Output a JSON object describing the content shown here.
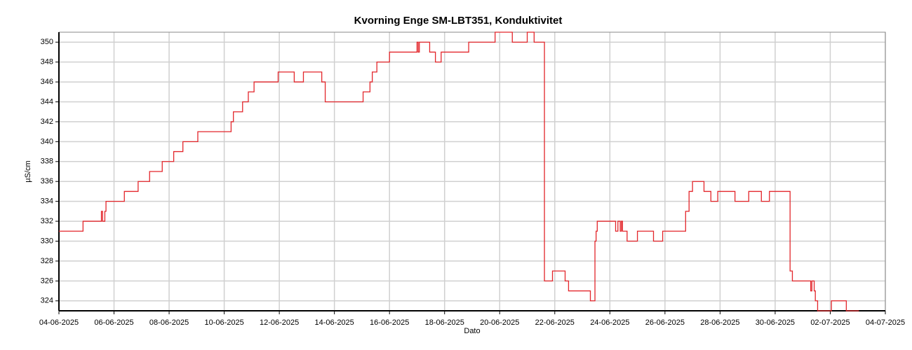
{
  "chart_data": {
    "type": "line",
    "title": "Kvorning Enge SM-LBT351, Konduktivitet",
    "x_label": "Dato",
    "y_label": "µS/cm",
    "drawstyle": "steps-post",
    "grid": true,
    "xlim": [
      "2025-06-04T00:00",
      "2025-07-04T00:00"
    ],
    "xticks": [
      {
        "value": "2025-06-04T00:00",
        "label": "04-06-2025"
      },
      {
        "value": "2025-06-06T00:00",
        "label": "06-06-2025"
      },
      {
        "value": "2025-06-08T00:00",
        "label": "08-06-2025"
      },
      {
        "value": "2025-06-10T00:00",
        "label": "10-06-2025"
      },
      {
        "value": "2025-06-12T00:00",
        "label": "12-06-2025"
      },
      {
        "value": "2025-06-14T00:00",
        "label": "14-06-2025"
      },
      {
        "value": "2025-06-16T00:00",
        "label": "16-06-2025"
      },
      {
        "value": "2025-06-18T00:00",
        "label": "18-06-2025"
      },
      {
        "value": "2025-06-20T00:00",
        "label": "20-06-2025"
      },
      {
        "value": "2025-06-22T00:00",
        "label": "22-06-2025"
      },
      {
        "value": "2025-06-24T00:00",
        "label": "24-06-2025"
      },
      {
        "value": "2025-06-26T00:00",
        "label": "26-06-2025"
      },
      {
        "value": "2025-06-28T00:00",
        "label": "28-06-2025"
      },
      {
        "value": "2025-06-30T00:00",
        "label": "30-06-2025"
      },
      {
        "value": "2025-07-02T00:00",
        "label": "02-07-2025"
      },
      {
        "value": "2025-07-04T00:00",
        "label": "04-07-2025"
      }
    ],
    "ylim": [
      323,
      351
    ],
    "yticks": [
      324,
      326,
      328,
      330,
      332,
      334,
      336,
      338,
      340,
      342,
      344,
      346,
      348,
      350
    ],
    "x": [
      "2025-06-04T00:00",
      "2025-06-04T21:00",
      "2025-06-05T13:00",
      "2025-06-05T14:00",
      "2025-06-05T16:00",
      "2025-06-05T17:00",
      "2025-06-06T09:00",
      "2025-06-06T21:00",
      "2025-06-07T07:00",
      "2025-06-07T18:00",
      "2025-06-08T04:00",
      "2025-06-08T12:00",
      "2025-06-09T01:00",
      "2025-06-10T06:00",
      "2025-06-10T08:00",
      "2025-06-10T16:00",
      "2025-06-10T21:00",
      "2025-06-11T02:00",
      "2025-06-11T23:00",
      "2025-06-12T13:00",
      "2025-06-12T21:00",
      "2025-06-13T13:00",
      "2025-06-13T16:00",
      "2025-06-15T01:00",
      "2025-06-15T07:00",
      "2025-06-15T09:00",
      "2025-06-15T13:00",
      "2025-06-16T00:00",
      "2025-06-17T00:00",
      "2025-06-17T01:00",
      "2025-06-17T02:00",
      "2025-06-17T11:00",
      "2025-06-17T16:00",
      "2025-06-17T21:00",
      "2025-06-18T21:00",
      "2025-06-19T20:00",
      "2025-06-20T11:00",
      "2025-06-21T00:00",
      "2025-06-21T06:00",
      "2025-06-21T15:00",
      "2025-06-21T22:00",
      "2025-06-22T09:00",
      "2025-06-22T12:00",
      "2025-06-23T07:00",
      "2025-06-23T11:00",
      "2025-06-23T12:00",
      "2025-06-23T13:00",
      "2025-06-24T05:00",
      "2025-06-24T07:00",
      "2025-06-24T09:00",
      "2025-06-24T10:00",
      "2025-06-24T11:00",
      "2025-06-24T15:00",
      "2025-06-25T00:00",
      "2025-06-25T14:00",
      "2025-06-25T22:00",
      "2025-06-26T18:00",
      "2025-06-26T21:00",
      "2025-06-27T00:00",
      "2025-06-27T10:00",
      "2025-06-27T16:00",
      "2025-06-27T22:00",
      "2025-06-28T13:00",
      "2025-06-29T01:00",
      "2025-06-29T12:00",
      "2025-06-29T19:00",
      "2025-06-30T13:00",
      "2025-06-30T15:00",
      "2025-07-01T07:00",
      "2025-07-01T08:00",
      "2025-07-01T10:00",
      "2025-07-01T11:00",
      "2025-07-01T13:00",
      "2025-07-02T01:00",
      "2025-07-02T14:00",
      "2025-07-03T01:00"
    ],
    "series": [
      {
        "name": "Konduktivitet",
        "color": "#e3262b",
        "values": [
          331,
          332,
          333,
          332,
          333,
          334,
          335,
          336,
          337,
          338,
          339,
          340,
          341,
          342,
          343,
          344,
          345,
          346,
          347,
          346,
          347,
          346,
          344,
          345,
          346,
          347,
          348,
          349,
          350,
          349,
          350,
          349,
          348,
          349,
          350,
          351,
          350,
          351,
          350,
          326,
          327,
          326,
          325,
          324,
          330,
          331,
          332,
          331,
          332,
          331,
          332,
          331,
          330,
          331,
          330,
          331,
          333,
          335,
          336,
          335,
          334,
          335,
          334,
          335,
          334,
          335,
          327,
          326,
          325,
          326,
          325,
          324,
          323,
          324,
          323,
          323
        ]
      }
    ]
  }
}
